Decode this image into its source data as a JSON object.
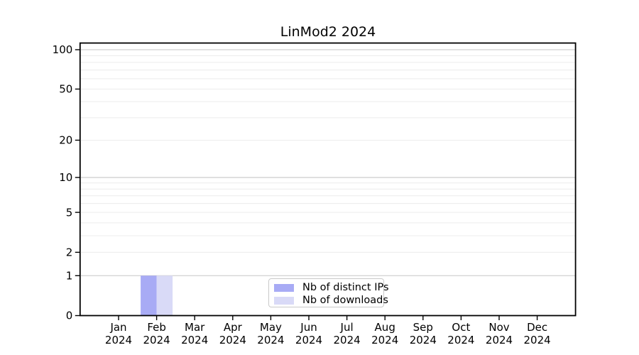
{
  "figure": {
    "background": "#ffffff"
  },
  "chart_data": {
    "type": "bar",
    "title": "LinMod2 2024",
    "categories": [
      "Jan",
      "Feb",
      "Mar",
      "Apr",
      "May",
      "Jun",
      "Jul",
      "Aug",
      "Sep",
      "Oct",
      "Nov",
      "Dec"
    ],
    "x_tick_year": "2024",
    "series": [
      {
        "name": "Nb of distinct IPs",
        "color": "#a8abf5",
        "values": [
          0,
          1,
          0,
          0,
          0,
          0,
          0,
          0,
          0,
          0,
          0,
          0
        ]
      },
      {
        "name": "Nb of downloads",
        "color": "#d9daf7",
        "values": [
          0,
          1,
          0,
          0,
          0,
          0,
          0,
          0,
          0,
          0,
          0,
          0
        ]
      }
    ],
    "xlabel": "",
    "ylabel": "",
    "yscale": "log1p",
    "ylim": [
      0,
      112
    ],
    "y_ticks": {
      "values": [
        0,
        1,
        2,
        5,
        10,
        20,
        50,
        100
      ],
      "labels": [
        "0",
        "1",
        "2",
        "5",
        "10",
        "20",
        "50",
        "100"
      ]
    },
    "grid": {
      "on": true,
      "minor_values": [
        2,
        3,
        4,
        5,
        6,
        7,
        8,
        9,
        20,
        30,
        40,
        50,
        60,
        70,
        80,
        90
      ],
      "major_values": [
        1,
        10,
        100
      ],
      "minor_color": "#ececec",
      "major_color": "#c6c6c6"
    },
    "legend": {
      "position": "lower-center-inside"
    },
    "colors": {
      "spine": "#000000",
      "tick": "#000000",
      "label": "#000000"
    }
  }
}
